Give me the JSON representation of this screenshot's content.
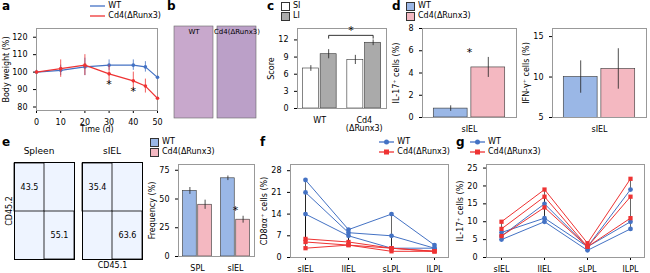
{
  "chart_data": [
    {
      "type": "line",
      "title": "a",
      "xlabel": "Time (d)",
      "ylabel": "Body weight (%)",
      "x": [
        0,
        10,
        20,
        30,
        40,
        45,
        50
      ],
      "xlim": [
        0,
        50
      ],
      "xticks": [
        0,
        10,
        20,
        30,
        40,
        50
      ],
      "ylim": [
        78,
        125
      ],
      "yticks": [
        80,
        90,
        100,
        110,
        120
      ],
      "legend": "upper right",
      "series": [
        {
          "name": "WT",
          "color": "#4472C4",
          "values": [
            100,
            101,
            103,
            104,
            104,
            103,
            97
          ],
          "errors": [
            1,
            3,
            5,
            3,
            3,
            3,
            3
          ]
        },
        {
          "name": "Cd4(ΔRunx3)",
          "color": "#EE3333",
          "values": [
            100,
            102,
            104,
            99,
            95,
            92,
            85
          ],
          "errors": [
            1,
            5,
            6,
            5,
            5,
            4,
            5
          ]
        }
      ],
      "annotations": [
        {
          "text": "*",
          "x": 30,
          "y": 93
        },
        {
          "text": "*",
          "x": 40,
          "y": 89
        }
      ]
    },
    {
      "type": "image",
      "title": "b",
      "colors": [
        "#C8A8CC",
        "#BBA0C8"
      ],
      "annotations": [
        {
          "text": "WT"
        },
        {
          "text": "Cd4(ΔRunx3)"
        }
      ]
    },
    {
      "type": "bar",
      "title": "c",
      "ylabel": "Score",
      "categories": [
        "WT",
        "Cd4\n(ΔRunx3)"
      ],
      "ylim": [
        0,
        14
      ],
      "yticks": [
        0,
        3,
        6,
        9,
        12
      ],
      "legend": "upper left",
      "series": [
        {
          "name": "SI",
          "color": "#FFFFFF",
          "values": [
            7.0,
            8.5
          ],
          "errors": [
            0.5,
            0.8
          ]
        },
        {
          "name": "LI",
          "color": "#AAAAAA",
          "values": [
            9.5,
            11.5
          ],
          "errors": [
            0.8,
            0.5
          ]
        }
      ],
      "annotations": [
        {
          "text": "*",
          "series": "LI",
          "categories": [
            "WT",
            "Cd4\n(ΔRunx3)"
          ],
          "y": 13.0,
          "bracket": [
            12.3,
            12.8
          ]
        }
      ]
    },
    {
      "type": "bar",
      "title": "d",
      "ylabel": "IL-17⁺ cells (%)",
      "categories": [
        "sIEL"
      ],
      "ylim": [
        0,
        8
      ],
      "yticks": [
        0,
        2,
        4,
        6,
        8
      ],
      "legend": "upper left",
      "series": [
        {
          "name": "WT",
          "color": "#9AB7E6",
          "values": [
            0.8
          ],
          "errors": [
            0.25
          ]
        },
        {
          "name": "Cd4(ΔRunx3)",
          "color": "#F4B8C1",
          "values": [
            4.5
          ],
          "errors": [
            0.9
          ]
        }
      ],
      "annotations": [
        {
          "text": "*",
          "category": "sIEL",
          "y": 5.5
        }
      ]
    },
    {
      "type": "bar",
      "ylabel": "IFN-γ⁺ cells (%)",
      "categories": [
        "sIEL"
      ],
      "ylim": [
        5,
        16
      ],
      "yticks": [
        5,
        10,
        15
      ],
      "series": [
        {
          "name": "WT",
          "color": "#9AB7E6",
          "values": [
            10.0
          ],
          "errors": [
            2.0
          ]
        },
        {
          "name": "Cd4(ΔRunx3)",
          "color": "#F4B8C1",
          "values": [
            11.0
          ],
          "errors": [
            2.5
          ]
        }
      ]
    },
    {
      "type": "flow",
      "title": "e",
      "subtitle": "Spleen",
      "ylabel": "CD45.2",
      "values": [
        43.5,
        55.1
      ],
      "data_labels": true,
      "color": "#EEF4FF"
    },
    {
      "type": "flow",
      "subtitle": "sIEL",
      "xlabel": "CD45.1",
      "values": [
        35.4,
        63.6
      ],
      "data_labels": true,
      "color": "#EEF4FF"
    },
    {
      "type": "bar",
      "ylabel": "Frequency (%)",
      "categories": [
        "SPL",
        "sIEL"
      ],
      "ylim": [
        0,
        80
      ],
      "yticks": [
        0,
        25,
        50,
        75
      ],
      "legend": "upper left",
      "series": [
        {
          "name": "WT",
          "color": "#9AB7E6",
          "values": [
            57.0,
            68.0
          ],
          "errors": [
            3.0,
            2.0
          ]
        },
        {
          "name": "Cd4(ΔRunx3)",
          "color": "#F4B8C1",
          "values": [
            45.0,
            32.0
          ],
          "errors": [
            4.0,
            3.0
          ]
        }
      ],
      "annotations": [
        {
          "text": "*",
          "category": "sIEL",
          "y": 37
        }
      ]
    },
    {
      "type": "paired",
      "title": "f",
      "ylabel": "CD8αα⁺ cells (%)",
      "categories": [
        "sIEL",
        "lIEL",
        "sLPL",
        "lLPL"
      ],
      "ylim": [
        0,
        30
      ],
      "yticks": [
        0,
        7,
        14,
        21,
        28
      ],
      "legend": "upper right",
      "series": [
        {
          "name": "WT",
          "color": "#4472C4",
          "marker": "circle",
          "values": [
            [
              25,
              9,
              14,
              4
            ],
            [
              21,
              8,
              7,
              3
            ],
            [
              14,
              7,
              3,
              3
            ]
          ]
        },
        {
          "name": "Cd4(ΔRunx3)",
          "color": "#EE3333",
          "marker": "square",
          "values": [
            [
              6,
              5,
              3,
              2
            ],
            [
              5,
              4,
              3,
              2
            ],
            [
              3,
              4,
              2,
              2
            ]
          ]
        }
      ]
    },
    {
      "type": "paired",
      "title": "g",
      "ylabel": "IL-17⁺ cells (%)",
      "categories": [
        "sIEL",
        "lIEL",
        "sLPL",
        "lLPL"
      ],
      "ylim": [
        0,
        26
      ],
      "yticks": [
        0,
        5,
        10,
        15,
        20,
        25
      ],
      "legend": "upper left",
      "series": [
        {
          "name": "WT",
          "color": "#4472C4",
          "marker": "circle",
          "values": [
            [
              6,
              15,
              3,
              19
            ],
            [
              7,
              11,
              3,
              10
            ],
            [
              5,
              10,
              2,
              8
            ]
          ]
        },
        {
          "name": "Cd4(ΔRunx3)",
          "color": "#EE3333",
          "marker": "square",
          "values": [
            [
              10,
              19,
              4,
              22
            ],
            [
              8,
              17,
              3,
              17
            ],
            [
              6,
              14,
              3,
              11
            ]
          ]
        }
      ]
    }
  ]
}
